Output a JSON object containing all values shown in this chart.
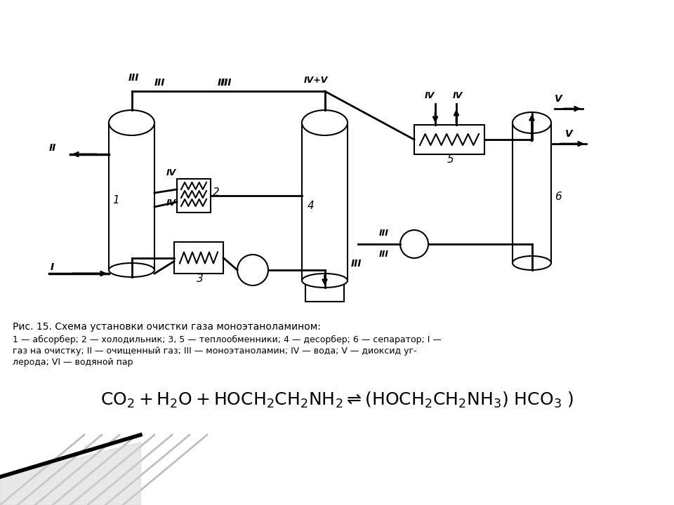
{
  "title": "Рис. 15. Схема установки очистки газа моноэтаноламином:",
  "caption_line2": "1 — абсорбер; 2 — холодильник; 3, 5 — теплообменники; 4 — десорбер; 6 — сепаратор; I —",
  "caption_line3": "газ на очистку; II — очищенный газ; III — моноэтаноламин; IV — вода; V — диоксид уг-",
  "caption_line4": "лерода; VI — водяной пар",
  "equation": "CO$_2$ + H$_2$O + HOCH$_2$CH$_2$NH$_2$ $\\rightleftharpoons$ (HOCH$_2$CH$_2$NH$_3$) HCO$_3$ )",
  "bg_color": "#ffffff",
  "line_color": "#000000",
  "diagram_color": "#f0f0f0"
}
